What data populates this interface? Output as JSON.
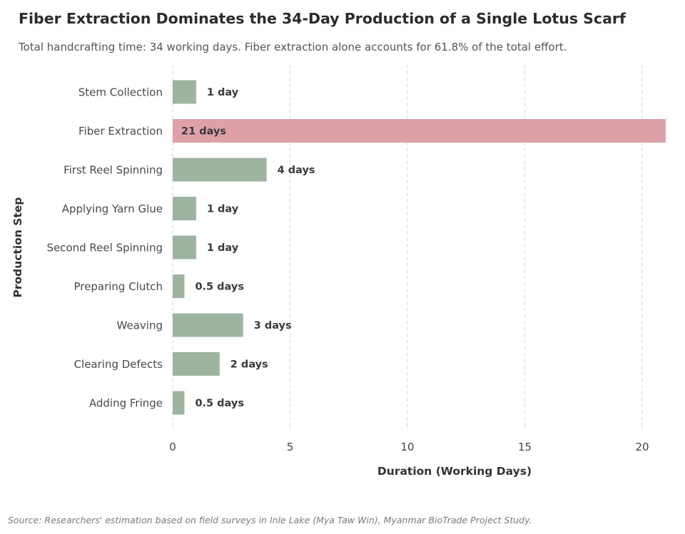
{
  "chart_data": {
    "type": "bar",
    "orientation": "horizontal",
    "title": "Fiber Extraction Dominates the 34-Day Production of a Single Lotus Scarf",
    "subtitle": "Total handcrafting time: 34 working days. Fiber extraction alone accounts for 61.8% of the total effort.",
    "xlabel": "Duration (Working Days)",
    "ylabel": "Production Step",
    "source": "Source: Researchers' estimation based on field surveys in Inle Lake (Mya Taw Win), Myanmar BioTrade Project Study.",
    "categories": [
      "Stem Collection",
      "Fiber Extraction",
      "First Reel Spinning",
      "Applying Yarn Glue",
      "Second Reel Spinning",
      "Preparing Clutch",
      "Weaving",
      "Clearing Defects",
      "Adding Fringe"
    ],
    "values": [
      1,
      21,
      4,
      1,
      1,
      0.5,
      3,
      2,
      0.5
    ],
    "value_labels": [
      "1 day",
      "21 days",
      "4 days",
      "1 day",
      "1 day",
      "0.5 days",
      "3 days",
      "2 days",
      "0.5 days"
    ],
    "highlight_index": 1,
    "xlim": [
      0,
      21
    ],
    "xticks": [
      0,
      5,
      10,
      15,
      20
    ],
    "grid": "vertical dashed",
    "colors": {
      "bar": "#9db5a0",
      "highlight": "#dea1a8",
      "highlight_label": "#8a5a5e",
      "grid": "#dddddd"
    }
  }
}
